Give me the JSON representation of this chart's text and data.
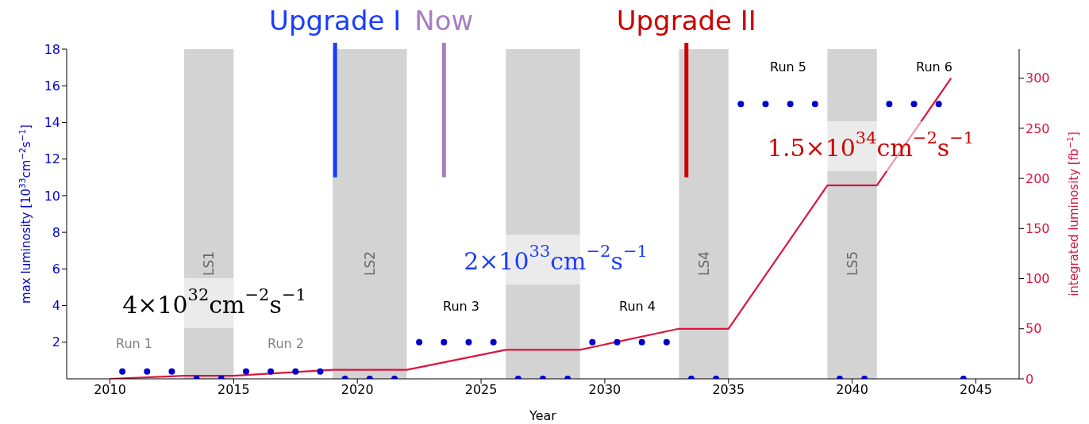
{
  "chart_data": {
    "type": "line",
    "xlabel": "Year",
    "ylabel": "max luminosity [10$^{33}$cm$^{−2}$s$^{−1}$]",
    "y2label": "integrated luminosity [fb$^{−1}$]",
    "xlim": [
      2008.25,
      2046.75
    ],
    "xticks": [
      2010,
      2015,
      2020,
      2025,
      2030,
      2035,
      2040,
      2045
    ],
    "ylim": [
      0,
      18
    ],
    "yticks": [
      2,
      4,
      6,
      8,
      10,
      12,
      14,
      16,
      18
    ],
    "y2lim": [
      0,
      329
    ],
    "y2ticks": [
      0,
      50,
      100,
      150,
      200,
      250,
      300
    ],
    "series": [
      {
        "type": "scatter",
        "color": "#0000cc",
        "marker": "circle",
        "x": [
          2010.5,
          2011.5,
          2012.5,
          2013.5,
          2014.5,
          2015.5,
          2016.5,
          2017.5,
          2018.5,
          2019.5,
          2020.5,
          2021.5,
          2022.5,
          2023.5,
          2024.5,
          2025.5,
          2026.5,
          2027.5,
          2028.5,
          2029.5,
          2030.5,
          2031.5,
          2032.5,
          2033.5,
          2034.5,
          2035.5,
          2036.5,
          2037.5,
          2038.5,
          2039.5,
          2040.5,
          2041.5,
          2042.5,
          2043.5,
          2044.5
        ],
        "values": [
          0.4,
          0.4,
          0.4,
          0,
          0,
          0.4,
          0.4,
          0.4,
          0.4,
          0,
          0,
          0,
          2,
          2,
          2,
          2,
          0,
          0,
          0,
          2,
          2,
          2,
          2,
          0,
          0,
          15,
          15,
          15,
          15,
          0,
          0,
          15,
          15,
          15,
          0
        ]
      },
      {
        "axis": "y2",
        "color": "#dc143c",
        "marker": "none",
        "x": [
          2010,
          2013,
          2015,
          2019,
          2022,
          2026,
          2029,
          2033,
          2035,
          2039,
          2041,
          2044
        ],
        "values": [
          0,
          3,
          3,
          9,
          9,
          29,
          29,
          50,
          50,
          193,
          193,
          300
        ]
      }
    ],
    "bands": [
      {
        "axis": "x",
        "from": 2013,
        "to": 2015,
        "label": "LS1",
        "color": "#d3d3d3"
      },
      {
        "axis": "x",
        "from": 2019,
        "to": 2022,
        "label": "LS2",
        "color": "#d3d3d3"
      },
      {
        "axis": "x",
        "from": 2026,
        "to": 2029,
        "label": null,
        "color": "#d3d3d3"
      },
      {
        "axis": "x",
        "from": 2033,
        "to": 2035,
        "label": "LS4",
        "color": "#d3d3d3"
      },
      {
        "axis": "x",
        "from": 2039,
        "to": 2041,
        "label": "LS5",
        "color": "#d3d3d3"
      }
    ],
    "ref_lines": [
      {
        "axis": "x",
        "value": 2019.1,
        "label": "Upgrade I",
        "color": "#1a3cff"
      },
      {
        "axis": "x",
        "value": 2023.5,
        "label": "Now",
        "color": "#a67fc4"
      },
      {
        "axis": "x",
        "value": 2033.3,
        "label": "Upgrade II",
        "color": "#cc0000"
      }
    ],
    "annotations": [
      "Run 1",
      "Run 2",
      "Run 3",
      "Run 4",
      "Run 5",
      "Run 6",
      "4×10$^{32}$cm$^{−2}$s$^{−1}$",
      "2×10$^{33}$cm$^{−2}$s$^{−1}$",
      "1.5×10$^{34}$cm$^{−2}$s$^{−1}$"
    ]
  }
}
